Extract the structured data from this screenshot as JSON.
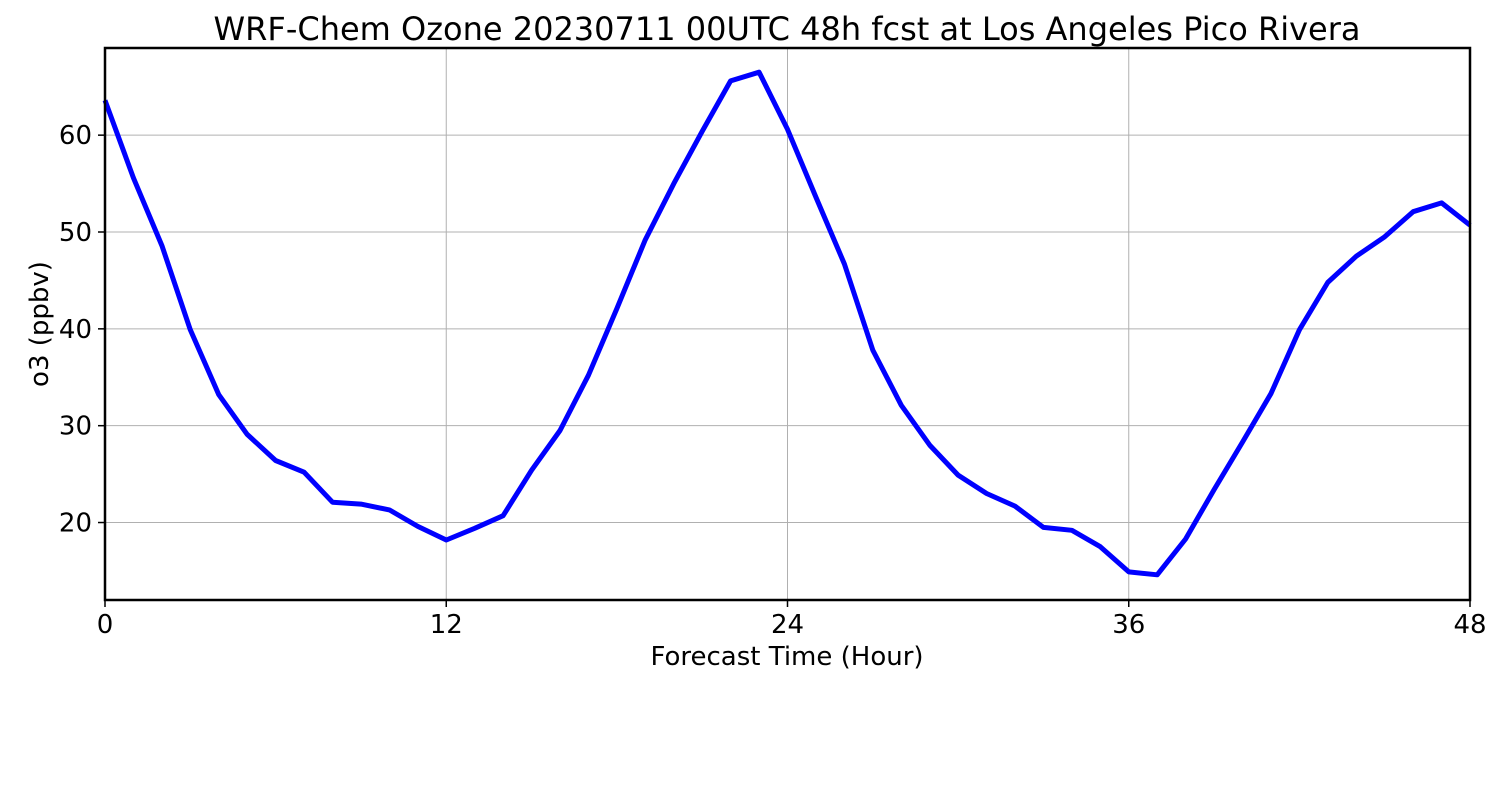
{
  "chart_data": {
    "type": "line",
    "title": "WRF-Chem Ozone  20230711 00UTC 48h fcst at Los Angeles Pico Rivera",
    "xlabel": "Forecast Time (Hour)",
    "ylabel": "o3  (ppbv)",
    "xlim": [
      0,
      48
    ],
    "ylim": [
      12,
      69
    ],
    "xticks": [
      0,
      12,
      24,
      36,
      48
    ],
    "yticks": [
      20,
      30,
      40,
      50,
      60
    ],
    "grid": true,
    "legend": "none",
    "series": [
      {
        "color": "#0000ff",
        "x": [
          0,
          1,
          2,
          3,
          4,
          5,
          6,
          7,
          8,
          9,
          10,
          11,
          12,
          13,
          14,
          15,
          16,
          17,
          18,
          19,
          20,
          21,
          22,
          23,
          24,
          25,
          26,
          27,
          28,
          29,
          30,
          31,
          32,
          33,
          34,
          35,
          36,
          37,
          38,
          39,
          40,
          41,
          42,
          43,
          44,
          45,
          46,
          47,
          48
        ],
        "values": [
          63.6,
          55.6,
          48.6,
          39.9,
          33.2,
          29.1,
          26.4,
          25.2,
          22.1,
          21.9,
          21.3,
          19.6,
          18.2,
          19.4,
          20.7,
          25.4,
          29.5,
          35.2,
          42.1,
          49.2,
          55.0,
          60.4,
          65.6,
          66.5,
          60.6,
          53.6,
          46.7,
          37.8,
          32.1,
          28.0,
          24.9,
          23.0,
          21.7,
          19.5,
          19.2,
          17.5,
          14.9,
          14.6,
          18.3,
          23.4,
          28.3,
          33.3,
          39.9,
          44.8,
          47.5,
          49.5,
          52.1,
          53.0,
          50.7
        ]
      }
    ]
  }
}
